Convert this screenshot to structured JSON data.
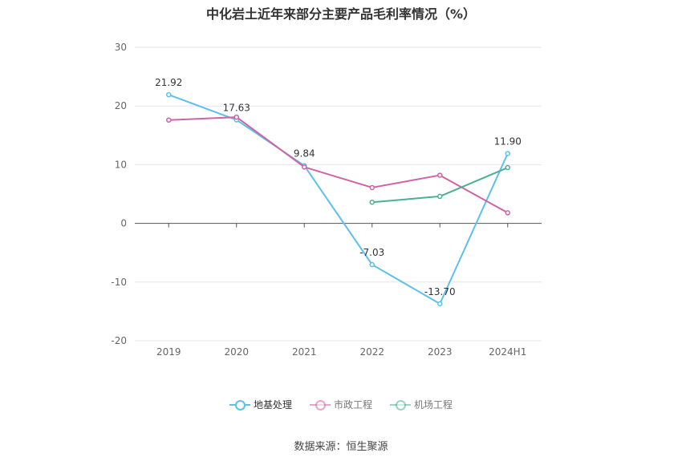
{
  "chart_data": {
    "type": "line",
    "title": "中化岩土近年来部分主要产品毛利率情况（%）",
    "categories": [
      "2019",
      "2020",
      "2021",
      "2022",
      "2023",
      "2024H1"
    ],
    "ylim": [
      -20,
      30
    ],
    "yticks": [
      -20,
      -10,
      0,
      10,
      20,
      30
    ],
    "grid": true,
    "legend_position": "bottom",
    "series": [
      {
        "name": "地基处理",
        "color": "#5bc0eb",
        "values": [
          21.92,
          17.63,
          9.84,
          -7.03,
          -13.7,
          11.9
        ],
        "labels": [
          "21.92",
          "17.63",
          "9.84",
          "-7.03",
          "-13.70",
          "11.90"
        ]
      },
      {
        "name": "市政工程",
        "color": "#d062a8",
        "values": [
          17.6,
          18.1,
          9.6,
          6.1,
          8.2,
          1.8
        ]
      },
      {
        "name": "机场工程",
        "color": "#4caf95",
        "values": [
          null,
          null,
          null,
          3.6,
          4.6,
          9.5
        ]
      }
    ]
  },
  "source": "数据来源：恒生聚源"
}
